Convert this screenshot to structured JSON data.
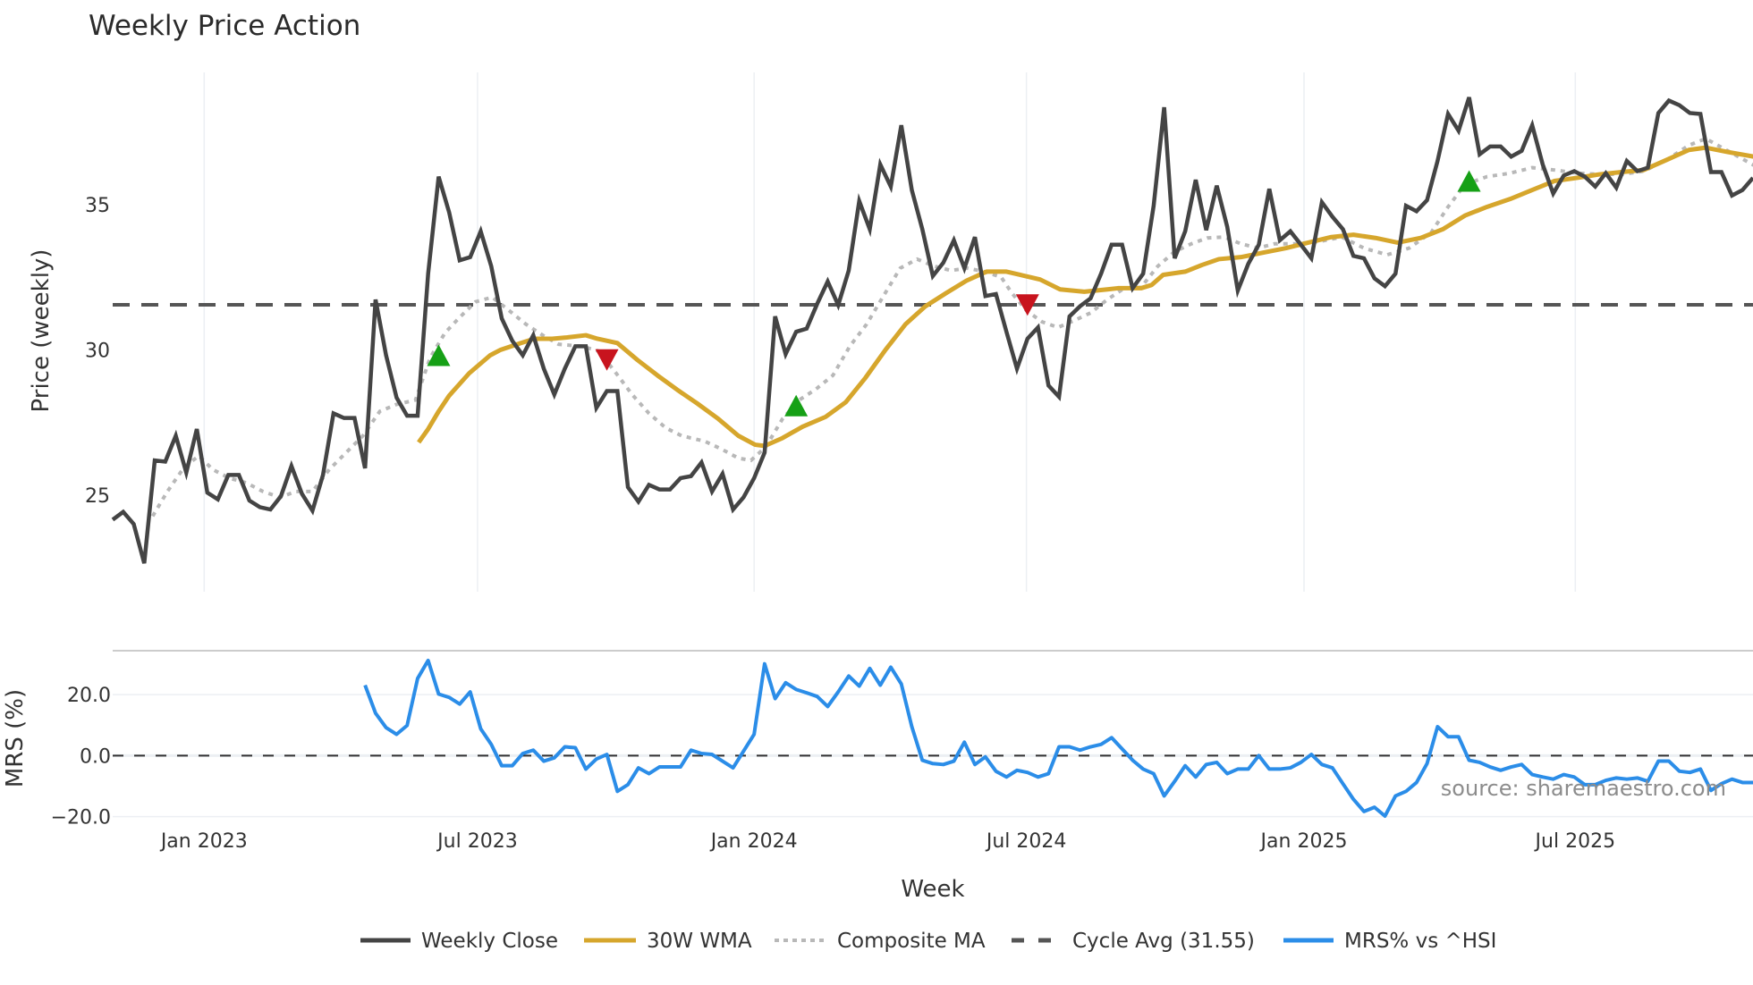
{
  "chart_data": {
    "type": "line",
    "title": "Weekly Price Action",
    "xlabel": "Week",
    "x_unit": "week index",
    "x_ticks": [
      {
        "label": "Jan 2023",
        "week": 8.7
      },
      {
        "label": "Jul 2023",
        "week": 34.7
      },
      {
        "label": "Jan 2024",
        "week": 61.0
      },
      {
        "label": "Jul 2024",
        "week": 86.9
      },
      {
        "label": "Jan 2025",
        "week": 113.3
      },
      {
        "label": "Jul 2025",
        "week": 139.1
      }
    ],
    "xlim": [
      0,
      156
    ],
    "source": "source: sharemaestro.com",
    "price_panel": {
      "ylabel": "Price (weekly)",
      "ylim": [
        21.67,
        39.55
      ],
      "y_ticks": [
        {
          "label": "25",
          "value": 25
        },
        {
          "label": "30",
          "value": 30
        },
        {
          "label": "35",
          "value": 35
        }
      ],
      "grid": "vertical",
      "cycle_avg": 31.55,
      "weekly_close": [
        24.15,
        24.42,
        24.0,
        22.65,
        26.19,
        26.15,
        27.04,
        25.77,
        27.27,
        25.08,
        24.85,
        25.69,
        25.69,
        24.81,
        24.58,
        24.5,
        24.96,
        26.0,
        25.04,
        24.46,
        25.69,
        27.81,
        27.65,
        27.65,
        25.92,
        31.73,
        29.81,
        28.35,
        27.73,
        27.73,
        32.62,
        35.96,
        34.73,
        33.08,
        33.19,
        34.08,
        32.88,
        31.08,
        30.31,
        29.81,
        30.5,
        29.35,
        28.46,
        29.35,
        30.12,
        30.12,
        28.0,
        28.58,
        28.58,
        25.27,
        24.77,
        25.35,
        25.19,
        25.19,
        25.58,
        25.65,
        26.12,
        25.12,
        25.73,
        24.5,
        24.92,
        25.58,
        26.46,
        31.15,
        29.85,
        30.62,
        30.73,
        31.58,
        32.35,
        31.54,
        32.73,
        35.12,
        34.15,
        36.38,
        35.62,
        37.73,
        35.5,
        34.15,
        32.54,
        33.0,
        33.77,
        32.81,
        33.88,
        31.85,
        31.92,
        30.62,
        29.35,
        30.38,
        30.77,
        28.77,
        28.38,
        31.15,
        31.5,
        31.77,
        32.62,
        33.62,
        33.62,
        32.12,
        32.62,
        34.96,
        38.35,
        33.15,
        34.08,
        35.85,
        34.12,
        35.65,
        34.23,
        32.04,
        32.96,
        33.62,
        35.54,
        33.77,
        34.08,
        33.62,
        33.15,
        35.08,
        34.58,
        34.15,
        33.23,
        33.15,
        32.46,
        32.19,
        32.62,
        34.96,
        34.77,
        35.15,
        36.5,
        38.12,
        37.54,
        38.69,
        36.73,
        37.0,
        37.0,
        36.65,
        36.85,
        37.73,
        36.38,
        35.38,
        36.0,
        36.15,
        35.96,
        35.62,
        36.08,
        35.58,
        36.5,
        36.15,
        36.27,
        38.15,
        38.58,
        38.42,
        38.15,
        38.12,
        36.12,
        36.12,
        35.31,
        35.5,
        35.92
      ],
      "wma_30w": [
        [
          29.1,
          26.81
        ],
        [
          30.0,
          27.27
        ],
        [
          31.0,
          27.88
        ],
        [
          32.0,
          28.42
        ],
        [
          33.9,
          29.19
        ],
        [
          35.9,
          29.81
        ],
        [
          36.9,
          30.0
        ],
        [
          38.8,
          30.23
        ],
        [
          40.1,
          30.38
        ],
        [
          41.8,
          30.38
        ],
        [
          43.1,
          30.42
        ],
        [
          45.0,
          30.5
        ],
        [
          46.1,
          30.38
        ],
        [
          48.0,
          30.23
        ],
        [
          49.9,
          29.65
        ],
        [
          51.8,
          29.12
        ],
        [
          53.7,
          28.62
        ],
        [
          55.6,
          28.15
        ],
        [
          57.6,
          27.62
        ],
        [
          59.5,
          27.04
        ],
        [
          61.1,
          26.73
        ],
        [
          62.0,
          26.69
        ],
        [
          63.7,
          26.96
        ],
        [
          65.6,
          27.35
        ],
        [
          67.8,
          27.69
        ],
        [
          69.7,
          28.19
        ],
        [
          71.6,
          29.04
        ],
        [
          73.5,
          30.0
        ],
        [
          75.4,
          30.88
        ],
        [
          77.3,
          31.5
        ],
        [
          79.3,
          31.96
        ],
        [
          81.2,
          32.38
        ],
        [
          83.1,
          32.69
        ],
        [
          85.0,
          32.69
        ],
        [
          86.3,
          32.58
        ],
        [
          88.2,
          32.42
        ],
        [
          90.1,
          32.08
        ],
        [
          92.4,
          32.0
        ],
        [
          94.6,
          32.08
        ],
        [
          95.6,
          32.12
        ],
        [
          97.8,
          32.12
        ],
        [
          98.8,
          32.23
        ],
        [
          99.9,
          32.58
        ],
        [
          102.0,
          32.69
        ],
        [
          103.6,
          32.92
        ],
        [
          105.2,
          33.12
        ],
        [
          107.3,
          33.19
        ],
        [
          109.5,
          33.35
        ],
        [
          111.6,
          33.5
        ],
        [
          113.7,
          33.69
        ],
        [
          115.9,
          33.88
        ],
        [
          118.0,
          33.96
        ],
        [
          120.1,
          33.85
        ],
        [
          122.2,
          33.69
        ],
        [
          124.4,
          33.85
        ],
        [
          126.5,
          34.15
        ],
        [
          128.6,
          34.62
        ],
        [
          130.7,
          34.92
        ],
        [
          132.9,
          35.19
        ],
        [
          135.0,
          35.5
        ],
        [
          137.1,
          35.81
        ],
        [
          139.3,
          35.92
        ],
        [
          141.4,
          36.04
        ],
        [
          143.5,
          36.12
        ],
        [
          145.6,
          36.19
        ],
        [
          147.8,
          36.54
        ],
        [
          149.9,
          36.88
        ],
        [
          151.5,
          36.96
        ],
        [
          153.6,
          36.81
        ],
        [
          156.1,
          36.65
        ]
      ],
      "composite_ma": [
        [
          3.8,
          24.27
        ],
        [
          5.2,
          25.12
        ],
        [
          6.8,
          25.96
        ],
        [
          8.2,
          26.35
        ],
        [
          9.5,
          25.88
        ],
        [
          11.1,
          25.58
        ],
        [
          12.7,
          25.42
        ],
        [
          14.3,
          25.12
        ],
        [
          15.9,
          24.92
        ],
        [
          17.4,
          25.12
        ],
        [
          19.0,
          25.12
        ],
        [
          20.6,
          25.88
        ],
        [
          22.2,
          26.46
        ],
        [
          23.8,
          27.04
        ],
        [
          25.4,
          27.88
        ],
        [
          27.0,
          28.12
        ],
        [
          28.8,
          28.27
        ],
        [
          30.2,
          29.73
        ],
        [
          31.6,
          30.58
        ],
        [
          32.9,
          31.08
        ],
        [
          34.5,
          31.65
        ],
        [
          36.1,
          31.81
        ],
        [
          37.7,
          31.35
        ],
        [
          39.3,
          30.88
        ],
        [
          40.9,
          30.5
        ],
        [
          42.4,
          30.19
        ],
        [
          44.6,
          30.12
        ],
        [
          46.2,
          29.96
        ],
        [
          47.8,
          29.23
        ],
        [
          49.4,
          28.46
        ],
        [
          51.0,
          27.81
        ],
        [
          52.6,
          27.31
        ],
        [
          54.1,
          27.04
        ],
        [
          56.3,
          26.85
        ],
        [
          57.9,
          26.58
        ],
        [
          59.5,
          26.27
        ],
        [
          60.7,
          26.19
        ],
        [
          62.1,
          26.65
        ],
        [
          63.7,
          27.62
        ],
        [
          65.3,
          28.27
        ],
        [
          66.9,
          28.65
        ],
        [
          68.5,
          29.12
        ],
        [
          70.1,
          30.12
        ],
        [
          71.7,
          30.88
        ],
        [
          73.3,
          31.85
        ],
        [
          74.9,
          32.81
        ],
        [
          76.5,
          33.12
        ],
        [
          78.1,
          32.88
        ],
        [
          79.7,
          32.73
        ],
        [
          81.3,
          32.81
        ],
        [
          82.9,
          32.69
        ],
        [
          84.5,
          32.5
        ],
        [
          85.5,
          31.96
        ],
        [
          86.9,
          31.35
        ],
        [
          88.4,
          30.96
        ],
        [
          89.9,
          30.77
        ],
        [
          91.4,
          31.0
        ],
        [
          93.0,
          31.27
        ],
        [
          94.6,
          31.73
        ],
        [
          96.2,
          32.12
        ],
        [
          97.8,
          32.15
        ],
        [
          99.4,
          32.88
        ],
        [
          101.0,
          33.38
        ],
        [
          102.6,
          33.65
        ],
        [
          104.1,
          33.85
        ],
        [
          105.7,
          33.88
        ],
        [
          107.3,
          33.65
        ],
        [
          108.9,
          33.5
        ],
        [
          110.5,
          33.65
        ],
        [
          112.7,
          33.65
        ],
        [
          114.8,
          33.73
        ],
        [
          116.9,
          33.88
        ],
        [
          119.0,
          33.5
        ],
        [
          121.2,
          33.27
        ],
        [
          123.3,
          33.5
        ],
        [
          125.4,
          34.04
        ],
        [
          127.0,
          34.92
        ],
        [
          128.6,
          35.69
        ],
        [
          130.7,
          35.96
        ],
        [
          132.9,
          36.08
        ],
        [
          135.0,
          36.27
        ],
        [
          137.1,
          36.19
        ],
        [
          139.3,
          36.08
        ],
        [
          141.4,
          36.04
        ],
        [
          143.5,
          36.04
        ],
        [
          145.6,
          36.15
        ],
        [
          147.8,
          36.54
        ],
        [
          149.9,
          37.04
        ],
        [
          151.5,
          37.27
        ],
        [
          153.6,
          36.85
        ],
        [
          156.1,
          36.35
        ]
      ],
      "signals": [
        {
          "type": "buy",
          "week": 31,
          "price": 29.81
        },
        {
          "type": "sell",
          "week": 47,
          "price": 29.65
        },
        {
          "type": "buy",
          "week": 65,
          "price": 28.08
        },
        {
          "type": "sell",
          "week": 87,
          "price": 31.54
        },
        {
          "type": "buy",
          "week": 129,
          "price": 35.81
        }
      ]
    },
    "mrs_panel": {
      "ylabel": "MRS (%)",
      "ylim": [
        -19.8,
        34.4
      ],
      "y_ticks": [
        {
          "label": "20.0",
          "value": 20
        },
        {
          "label": "0.0",
          "value": 0
        },
        {
          "label": "−20.0",
          "value": -20
        }
      ],
      "start_week": 24,
      "values": [
        23.1,
        13.9,
        9.2,
        7.0,
        9.9,
        25.3,
        31.2,
        20.2,
        19.1,
        16.9,
        20.9,
        8.8,
        3.7,
        -3.3,
        -3.3,
        0.7,
        1.8,
        -1.8,
        -0.7,
        2.9,
        2.6,
        -4.4,
        -1.1,
        0.4,
        -11.7,
        -9.5,
        -4.0,
        -5.9,
        -3.7,
        -3.7,
        -3.7,
        1.8,
        0.7,
        0.4,
        -1.8,
        -4.0,
        1.5,
        7.0,
        30.1,
        18.7,
        23.9,
        21.7,
        20.6,
        19.4,
        16.1,
        20.9,
        26.1,
        22.8,
        28.6,
        23.1,
        29.0,
        23.5,
        9.5,
        -1.5,
        -2.6,
        -2.9,
        -1.8,
        4.4,
        -2.9,
        -0.4,
        -5.1,
        -7.0,
        -4.8,
        -5.5,
        -7.0,
        -5.9,
        2.9,
        2.9,
        1.8,
        2.9,
        3.7,
        5.9,
        2.2,
        -1.5,
        -4.4,
        -5.9,
        -13.2,
        -8.4,
        -3.3,
        -7.0,
        -2.9,
        -2.2,
        -5.9,
        -4.4,
        -4.4,
        0.0,
        -4.4,
        -4.4,
        -4.0,
        -2.2,
        0.4,
        -2.9,
        -4.0,
        -9.2,
        -14.3,
        -18.3,
        -16.9,
        -19.8,
        -13.2,
        -11.7,
        -8.8,
        -2.6,
        9.5,
        6.2,
        6.2,
        -1.5,
        -2.2,
        -3.7,
        -4.8,
        -3.7,
        -2.9,
        -6.2,
        -7.0,
        -7.7,
        -6.2,
        -7.0,
        -9.5,
        -9.5,
        -8.1,
        -7.3,
        -7.7,
        -7.3,
        -8.4,
        -1.8,
        -1.8,
        -5.1,
        -5.5,
        -4.4,
        -11.4,
        -9.2,
        -7.7,
        -8.8,
        -8.8
      ]
    },
    "legend": {
      "placement": "bottom-center",
      "items": [
        {
          "label": "Weekly Close",
          "style": "solid",
          "color": "#444444"
        },
        {
          "label": "30W WMA",
          "style": "solid",
          "color": "#d6a62c"
        },
        {
          "label": "Composite MA",
          "style": "dotted",
          "color": "#b8b8b8"
        },
        {
          "label": "Cycle Avg (31.55)",
          "style": "dashed",
          "color": "#555555"
        },
        {
          "label": "MRS% vs ^HSI",
          "style": "solid",
          "color": "#2b8de8"
        }
      ]
    },
    "colors": {
      "close": "#444444",
      "wma": "#d6a62c",
      "composite": "#b8b8b8",
      "cycle": "#555555",
      "mrs": "#2b8de8",
      "buy": "#16a016",
      "sell": "#c8141e",
      "grid": "#eceff3"
    }
  }
}
